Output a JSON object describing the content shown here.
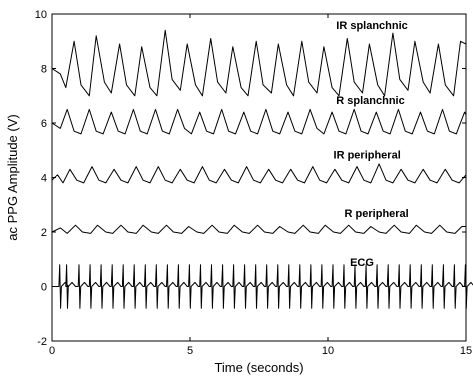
{
  "chart_data": {
    "type": "line",
    "xlabel": "Time (seconds)",
    "ylabel": "ac PPG Amplitude (V)",
    "xlim": [
      0,
      15
    ],
    "ylim": [
      -2,
      10
    ],
    "xticks": [
      0,
      5,
      10,
      15
    ],
    "yticks": [
      -2,
      0,
      2,
      4,
      6,
      8,
      10
    ],
    "xtick_labels": [
      "0",
      "5",
      "10",
      "15"
    ],
    "ytick_labels": [
      "-2",
      "0",
      "2",
      "4",
      "6",
      "8",
      "10"
    ],
    "grid": false,
    "series": [
      {
        "name": "IR splanchnic",
        "label_x": 10.3,
        "label_y": 9.45,
        "x": [
          0,
          0.3,
          0.5,
          0.8,
          1.05,
          1.35,
          1.6,
          1.9,
          2.15,
          2.45,
          2.7,
          3.0,
          3.25,
          3.55,
          3.8,
          4.1,
          4.35,
          4.65,
          4.9,
          5.2,
          5.45,
          5.75,
          6.0,
          6.3,
          6.55,
          6.85,
          7.1,
          7.4,
          7.65,
          7.95,
          8.2,
          8.5,
          8.75,
          9.05,
          9.3,
          9.6,
          9.85,
          10.15,
          10.4,
          10.7,
          10.95,
          11.25,
          11.5,
          11.8,
          12.05,
          12.35,
          12.6,
          12.9,
          13.15,
          13.45,
          13.7,
          14.0,
          14.25,
          14.55,
          14.8,
          15.0
        ],
        "y": [
          8.0,
          7.8,
          7.3,
          9.0,
          7.4,
          7.0,
          9.2,
          7.5,
          7.1,
          8.9,
          7.4,
          7.0,
          8.8,
          7.3,
          7.0,
          9.4,
          7.6,
          7.2,
          8.9,
          7.4,
          7.0,
          9.1,
          7.5,
          7.1,
          8.8,
          7.3,
          7.0,
          9.0,
          7.4,
          7.1,
          8.9,
          7.4,
          7.0,
          9.0,
          7.5,
          7.1,
          8.8,
          7.3,
          7.0,
          9.1,
          7.5,
          7.1,
          8.9,
          7.4,
          7.0,
          9.3,
          7.6,
          7.2,
          9.0,
          7.5,
          7.1,
          8.9,
          7.4,
          7.0,
          9.0,
          8.9
        ]
      },
      {
        "name": "R splanchnic",
        "label_x": 10.3,
        "label_y": 6.7,
        "x": [
          0,
          0.3,
          0.55,
          0.8,
          1.05,
          1.35,
          1.6,
          1.85,
          2.15,
          2.4,
          2.65,
          2.95,
          3.2,
          3.45,
          3.75,
          4.0,
          4.25,
          4.55,
          4.8,
          5.05,
          5.35,
          5.6,
          5.85,
          6.15,
          6.4,
          6.65,
          6.95,
          7.2,
          7.45,
          7.75,
          8.0,
          8.25,
          8.55,
          8.8,
          9.05,
          9.35,
          9.6,
          9.85,
          10.15,
          10.4,
          10.65,
          10.95,
          11.2,
          11.45,
          11.75,
          12.0,
          12.25,
          12.55,
          12.8,
          13.05,
          13.35,
          13.6,
          13.85,
          14.15,
          14.4,
          14.65,
          14.95,
          15.0
        ],
        "y": [
          6.0,
          5.8,
          6.5,
          5.7,
          5.6,
          6.5,
          5.7,
          5.6,
          6.4,
          5.7,
          5.6,
          6.5,
          5.7,
          5.6,
          6.5,
          5.7,
          5.6,
          6.5,
          5.8,
          5.6,
          6.4,
          5.7,
          5.6,
          6.5,
          5.7,
          5.6,
          6.4,
          5.7,
          5.6,
          6.5,
          5.7,
          5.6,
          6.4,
          5.7,
          5.6,
          6.5,
          5.8,
          5.6,
          6.4,
          5.7,
          5.6,
          6.5,
          5.7,
          5.6,
          6.4,
          5.7,
          5.6,
          6.5,
          5.7,
          5.6,
          6.4,
          5.7,
          5.6,
          6.5,
          5.7,
          5.6,
          6.4,
          6.3
        ]
      },
      {
        "name": "IR peripheral",
        "label_x": 10.2,
        "label_y": 4.7,
        "x": [
          0,
          0.2,
          0.4,
          0.65,
          0.9,
          1.15,
          1.45,
          1.7,
          1.95,
          2.25,
          2.5,
          2.75,
          3.05,
          3.3,
          3.55,
          3.85,
          4.1,
          4.35,
          4.65,
          4.9,
          5.15,
          5.45,
          5.7,
          5.95,
          6.25,
          6.5,
          6.75,
          7.05,
          7.3,
          7.55,
          7.85,
          8.1,
          8.35,
          8.65,
          8.9,
          9.15,
          9.45,
          9.7,
          9.95,
          10.25,
          10.5,
          10.75,
          11.05,
          11.3,
          11.55,
          11.85,
          12.1,
          12.35,
          12.65,
          12.9,
          13.15,
          13.45,
          13.7,
          13.95,
          14.25,
          14.5,
          14.75,
          15.0
        ],
        "y": [
          3.9,
          4.1,
          3.8,
          4.3,
          3.9,
          3.8,
          4.4,
          3.9,
          3.8,
          4.3,
          3.9,
          3.8,
          4.4,
          3.9,
          3.8,
          4.4,
          3.9,
          3.8,
          4.3,
          3.9,
          3.8,
          4.4,
          3.9,
          3.8,
          4.3,
          3.9,
          3.8,
          4.4,
          3.9,
          3.8,
          4.3,
          3.9,
          3.8,
          4.3,
          3.9,
          3.8,
          4.4,
          3.9,
          3.8,
          4.3,
          3.9,
          3.8,
          4.4,
          3.9,
          3.8,
          4.5,
          3.9,
          3.8,
          4.3,
          3.9,
          3.8,
          4.3,
          3.9,
          3.8,
          4.3,
          3.9,
          3.8,
          4.1
        ]
      },
      {
        "name": "R peripheral",
        "label_x": 10.6,
        "label_y": 2.55,
        "x": [
          0,
          0.3,
          0.55,
          0.85,
          1.1,
          1.4,
          1.65,
          1.95,
          2.2,
          2.5,
          2.75,
          3.05,
          3.3,
          3.6,
          3.85,
          4.15,
          4.4,
          4.7,
          4.95,
          5.25,
          5.5,
          5.8,
          6.05,
          6.35,
          6.6,
          6.9,
          7.15,
          7.45,
          7.7,
          8.0,
          8.25,
          8.55,
          8.8,
          9.1,
          9.35,
          9.65,
          9.9,
          10.2,
          10.45,
          10.75,
          11.0,
          11.3,
          11.55,
          11.85,
          12.1,
          12.4,
          12.65,
          12.95,
          13.2,
          13.5,
          13.75,
          14.05,
          14.3,
          14.6,
          14.85,
          15.0
        ],
        "y": [
          2.0,
          2.15,
          1.95,
          2.25,
          2.0,
          1.95,
          2.25,
          2.0,
          1.95,
          2.25,
          2.0,
          1.95,
          2.25,
          2.0,
          1.95,
          2.25,
          2.0,
          1.95,
          2.2,
          2.0,
          1.95,
          2.25,
          2.0,
          1.95,
          2.25,
          2.0,
          1.95,
          2.25,
          2.0,
          1.95,
          2.2,
          2.0,
          1.95,
          2.25,
          2.0,
          1.95,
          2.25,
          2.0,
          1.95,
          2.25,
          2.0,
          1.95,
          2.2,
          2.0,
          1.95,
          2.25,
          2.0,
          1.95,
          2.25,
          2.0,
          1.95,
          2.25,
          2.0,
          1.95,
          2.2,
          2.2
        ]
      },
      {
        "name": "ECG",
        "label_x": 10.8,
        "label_y": 0.75,
        "beats_x": [
          0.3,
          0.55,
          1.0,
          1.4,
          1.8,
          2.2,
          2.6,
          3.0,
          3.4,
          3.8,
          4.2,
          4.6,
          5.0,
          5.4,
          5.8,
          6.2,
          6.6,
          7.0,
          7.4,
          7.8,
          8.2,
          8.6,
          9.0,
          9.4,
          9.8,
          10.2,
          10.6,
          11.0,
          11.4,
          11.8,
          12.2,
          12.6,
          13.0,
          13.4,
          13.8,
          14.2,
          14.6,
          15.0
        ],
        "beat_peak": 0.8,
        "beat_trough": -0.8,
        "baseline": 0.0
      }
    ]
  }
}
